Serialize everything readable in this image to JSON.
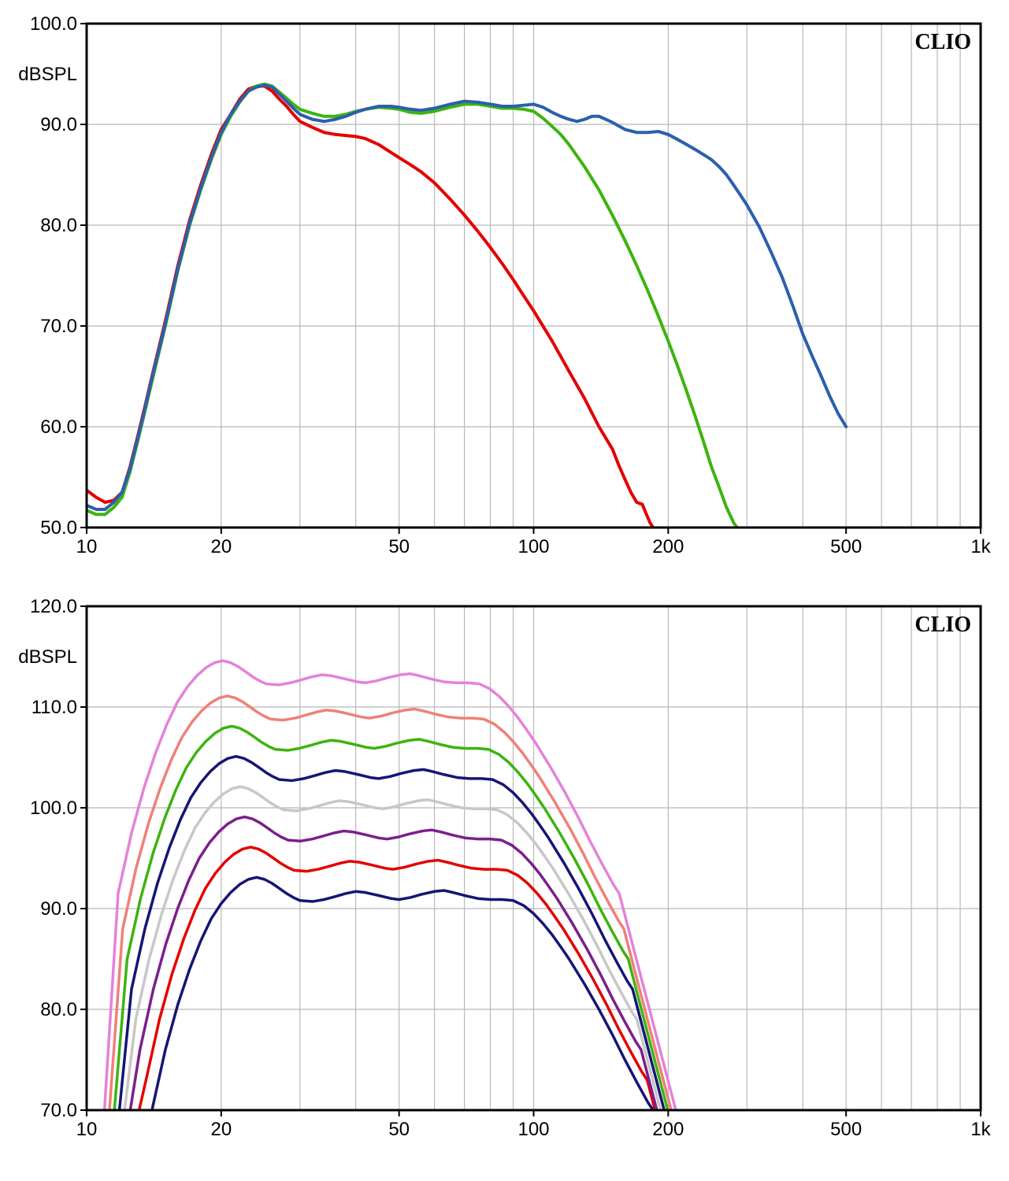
{
  "chart1": {
    "type": "line",
    "brand_label": "CLIO",
    "ylabel": "dBSPL",
    "background_color": "#ffffff",
    "border_color": "#000000",
    "grid_color": "#b8b8b8",
    "grid_width": 1.2,
    "border_width": 3,
    "line_width": 4,
    "axis_fontsize": 24,
    "brand_fontsize": 28,
    "x": {
      "scale": "log",
      "min": 10,
      "max": 1000,
      "major_ticks": [
        10,
        20,
        50,
        100,
        200,
        500,
        1000
      ],
      "major_labels": [
        "10",
        "20",
        "50",
        "100",
        "200",
        "500",
        "1k"
      ],
      "minor_ticks": [
        10,
        20,
        30,
        40,
        50,
        60,
        70,
        80,
        90,
        100,
        200,
        300,
        400,
        500,
        600,
        700,
        800,
        900,
        1000
      ]
    },
    "y": {
      "scale": "linear",
      "min": 50,
      "max": 100,
      "tick_step": 10,
      "ticks": [
        50,
        60,
        70,
        80,
        90,
        100
      ],
      "labels": [
        "50.0",
        "60.0",
        "70.0",
        "80.0",
        "90.0",
        "100.0"
      ]
    },
    "series": [
      {
        "name": "red",
        "color": "#e40000",
        "points": [
          [
            10,
            53.7
          ],
          [
            10.5,
            53
          ],
          [
            11,
            52.5
          ],
          [
            11.5,
            52.7
          ],
          [
            12,
            53.5
          ],
          [
            12.5,
            56
          ],
          [
            13,
            59
          ],
          [
            13.5,
            62
          ],
          [
            14,
            65
          ],
          [
            15,
            70.5
          ],
          [
            16,
            76
          ],
          [
            17,
            80.5
          ],
          [
            18,
            84
          ],
          [
            19,
            87
          ],
          [
            20,
            89.5
          ],
          [
            21,
            91
          ],
          [
            22,
            92.5
          ],
          [
            23,
            93.5
          ],
          [
            24,
            93.8
          ],
          [
            25,
            93.8
          ],
          [
            26,
            93.3
          ],
          [
            27,
            92.5
          ],
          [
            28,
            91.8
          ],
          [
            29,
            91
          ],
          [
            30,
            90.3
          ],
          [
            32,
            89.7
          ],
          [
            34,
            89.2
          ],
          [
            36,
            89
          ],
          [
            38,
            88.9
          ],
          [
            40,
            88.8
          ],
          [
            42,
            88.6
          ],
          [
            45,
            88
          ],
          [
            48,
            87.2
          ],
          [
            50,
            86.7
          ],
          [
            53,
            86
          ],
          [
            56,
            85.3
          ],
          [
            60,
            84.2
          ],
          [
            65,
            82.6
          ],
          [
            70,
            81
          ],
          [
            75,
            79.4
          ],
          [
            80,
            77.8
          ],
          [
            85,
            76.2
          ],
          [
            90,
            74.6
          ],
          [
            95,
            73
          ],
          [
            100,
            71.5
          ],
          [
            110,
            68.5
          ],
          [
            120,
            65.5
          ],
          [
            130,
            62.8
          ],
          [
            140,
            60
          ],
          [
            150,
            57.8
          ],
          [
            155,
            56.2
          ],
          [
            160,
            54.8
          ],
          [
            165,
            53.5
          ],
          [
            170,
            52.5
          ],
          [
            175,
            52.3
          ],
          [
            178,
            51.5
          ],
          [
            182,
            50.5
          ],
          [
            185,
            50
          ]
        ]
      },
      {
        "name": "green",
        "color": "#3cb40f",
        "points": [
          [
            10,
            51.7
          ],
          [
            10.5,
            51.3
          ],
          [
            11,
            51.3
          ],
          [
            11.5,
            52
          ],
          [
            12,
            53
          ],
          [
            12.5,
            55.5
          ],
          [
            13,
            58.5
          ],
          [
            13.5,
            61.5
          ],
          [
            14,
            64.5
          ],
          [
            15,
            70
          ],
          [
            16,
            75.5
          ],
          [
            17,
            80
          ],
          [
            18,
            83.5
          ],
          [
            19,
            86.5
          ],
          [
            20,
            89
          ],
          [
            21,
            90.8
          ],
          [
            22,
            92.2
          ],
          [
            23,
            93.3
          ],
          [
            24,
            93.8
          ],
          [
            25,
            94
          ],
          [
            26,
            93.8
          ],
          [
            27,
            93.2
          ],
          [
            28,
            92.6
          ],
          [
            29,
            92
          ],
          [
            30,
            91.5
          ],
          [
            32,
            91.1
          ],
          [
            34,
            90.8
          ],
          [
            36,
            90.8
          ],
          [
            38,
            91
          ],
          [
            40,
            91.3
          ],
          [
            42,
            91.5
          ],
          [
            45,
            91.7
          ],
          [
            48,
            91.6
          ],
          [
            50,
            91.5
          ],
          [
            53,
            91.2
          ],
          [
            56,
            91.1
          ],
          [
            60,
            91.3
          ],
          [
            65,
            91.7
          ],
          [
            70,
            92
          ],
          [
            75,
            92
          ],
          [
            80,
            91.8
          ],
          [
            85,
            91.6
          ],
          [
            90,
            91.6
          ],
          [
            95,
            91.5
          ],
          [
            100,
            91.3
          ],
          [
            105,
            90.6
          ],
          [
            110,
            89.8
          ],
          [
            115,
            89
          ],
          [
            120,
            88
          ],
          [
            130,
            85.8
          ],
          [
            140,
            83.5
          ],
          [
            150,
            81
          ],
          [
            160,
            78.5
          ],
          [
            170,
            76
          ],
          [
            180,
            73.5
          ],
          [
            190,
            71
          ],
          [
            200,
            68.5
          ],
          [
            210,
            66
          ],
          [
            220,
            63.5
          ],
          [
            230,
            61
          ],
          [
            240,
            58.5
          ],
          [
            250,
            56
          ],
          [
            260,
            54
          ],
          [
            270,
            52
          ],
          [
            280,
            50.5
          ],
          [
            285,
            50
          ]
        ]
      },
      {
        "name": "blue",
        "color": "#2b5fae",
        "points": [
          [
            10,
            52.2
          ],
          [
            10.5,
            51.8
          ],
          [
            11,
            51.8
          ],
          [
            11.5,
            52.5
          ],
          [
            12,
            53.5
          ],
          [
            12.5,
            55.8
          ],
          [
            13,
            58.8
          ],
          [
            13.5,
            61.8
          ],
          [
            14,
            64.8
          ],
          [
            15,
            70.2
          ],
          [
            16,
            75.7
          ],
          [
            17,
            80.2
          ],
          [
            18,
            83.7
          ],
          [
            19,
            86.7
          ],
          [
            20,
            89.2
          ],
          [
            21,
            91
          ],
          [
            22,
            92.3
          ],
          [
            23,
            93.3
          ],
          [
            24,
            93.7
          ],
          [
            25,
            93.9
          ],
          [
            26,
            93.7
          ],
          [
            27,
            93
          ],
          [
            28,
            92.3
          ],
          [
            29,
            91.6
          ],
          [
            30,
            91
          ],
          [
            32,
            90.5
          ],
          [
            34,
            90.3
          ],
          [
            36,
            90.5
          ],
          [
            38,
            90.8
          ],
          [
            40,
            91.2
          ],
          [
            42,
            91.5
          ],
          [
            45,
            91.8
          ],
          [
            48,
            91.8
          ],
          [
            50,
            91.7
          ],
          [
            53,
            91.5
          ],
          [
            56,
            91.4
          ],
          [
            60,
            91.6
          ],
          [
            65,
            92
          ],
          [
            70,
            92.3
          ],
          [
            75,
            92.2
          ],
          [
            80,
            92
          ],
          [
            85,
            91.8
          ],
          [
            90,
            91.8
          ],
          [
            95,
            91.9
          ],
          [
            100,
            92
          ],
          [
            105,
            91.7
          ],
          [
            110,
            91.2
          ],
          [
            115,
            90.8
          ],
          [
            120,
            90.5
          ],
          [
            125,
            90.3
          ],
          [
            130,
            90.5
          ],
          [
            135,
            90.8
          ],
          [
            140,
            90.8
          ],
          [
            145,
            90.5
          ],
          [
            150,
            90.2
          ],
          [
            160,
            89.5
          ],
          [
            170,
            89.2
          ],
          [
            180,
            89.2
          ],
          [
            190,
            89.3
          ],
          [
            200,
            89
          ],
          [
            210,
            88.5
          ],
          [
            220,
            88
          ],
          [
            230,
            87.5
          ],
          [
            240,
            87
          ],
          [
            250,
            86.5
          ],
          [
            260,
            85.8
          ],
          [
            270,
            85
          ],
          [
            280,
            84
          ],
          [
            290,
            83
          ],
          [
            300,
            82
          ],
          [
            320,
            79.8
          ],
          [
            340,
            77.3
          ],
          [
            360,
            74.8
          ],
          [
            380,
            72
          ],
          [
            400,
            69.2
          ],
          [
            420,
            67
          ],
          [
            440,
            65
          ],
          [
            460,
            63
          ],
          [
            480,
            61.3
          ],
          [
            500,
            60
          ]
        ]
      }
    ]
  },
  "chart2": {
    "type": "line",
    "brand_label": "CLIO",
    "ylabel": "dBSPL",
    "background_color": "#ffffff",
    "border_color": "#000000",
    "grid_color": "#b8b8b8",
    "grid_width": 1.2,
    "border_width": 3,
    "line_width": 3.5,
    "axis_fontsize": 24,
    "brand_fontsize": 28,
    "x": {
      "scale": "log",
      "min": 10,
      "max": 1000,
      "major_ticks": [
        10,
        20,
        50,
        100,
        200,
        500,
        1000
      ],
      "major_labels": [
        "10",
        "20",
        "50",
        "100",
        "200",
        "500",
        "1k"
      ],
      "minor_ticks": [
        10,
        20,
        30,
        40,
        50,
        60,
        70,
        80,
        90,
        100,
        200,
        300,
        400,
        500,
        600,
        700,
        800,
        900,
        1000
      ]
    },
    "y": {
      "scale": "linear",
      "min": 70,
      "max": 120,
      "tick_step": 10,
      "ticks": [
        70,
        80,
        90,
        100,
        110,
        120
      ],
      "labels": [
        "70.0",
        "80.0",
        "90.0",
        "100.0",
        "110.0",
        "120.0"
      ]
    },
    "base_curve": {
      "points": [
        [
          14,
          70
        ],
        [
          15,
          76
        ],
        [
          16,
          80.5
        ],
        [
          17,
          84
        ],
        [
          18,
          86.8
        ],
        [
          19,
          89
        ],
        [
          20,
          90.5
        ],
        [
          21,
          91.6
        ],
        [
          22,
          92.4
        ],
        [
          23,
          92.9
        ],
        [
          24,
          93.1
        ],
        [
          25,
          92.9
        ],
        [
          26,
          92.5
        ],
        [
          27,
          92
        ],
        [
          28,
          91.5
        ],
        [
          29,
          91.1
        ],
        [
          30,
          90.8
        ],
        [
          32,
          90.7
        ],
        [
          34,
          90.9
        ],
        [
          36,
          91.2
        ],
        [
          38,
          91.5
        ],
        [
          40,
          91.7
        ],
        [
          42,
          91.6
        ],
        [
          45,
          91.3
        ],
        [
          48,
          91
        ],
        [
          50,
          90.9
        ],
        [
          53,
          91.1
        ],
        [
          56,
          91.4
        ],
        [
          60,
          91.7
        ],
        [
          63,
          91.8
        ],
        [
          66,
          91.6
        ],
        [
          70,
          91.3
        ],
        [
          75,
          91
        ],
        [
          80,
          90.9
        ],
        [
          85,
          90.9
        ],
        [
          90,
          90.8
        ],
        [
          95,
          90.3
        ],
        [
          100,
          89.5
        ],
        [
          105,
          88.5
        ],
        [
          110,
          87.4
        ],
        [
          115,
          86.2
        ],
        [
          120,
          85
        ],
        [
          130,
          82.5
        ],
        [
          140,
          80
        ],
        [
          150,
          77.5
        ],
        [
          160,
          75
        ],
        [
          170,
          72.8
        ],
        [
          180,
          70.8
        ],
        [
          185,
          70
        ]
      ]
    },
    "series": [
      {
        "name": "s1_darkblue_bottom",
        "color": "#151575",
        "offset": 0,
        "x_shift": 1.0
      },
      {
        "name": "s2_red",
        "color": "#e40000",
        "offset": 3,
        "x_shift": 0.97
      },
      {
        "name": "s3_purple",
        "color": "#7b1f8b",
        "offset": 6,
        "x_shift": 0.94
      },
      {
        "name": "s4_grey",
        "color": "#c7c7c7",
        "offset": 9,
        "x_shift": 0.92
      },
      {
        "name": "s5_darkblue_mid",
        "color": "#151575",
        "offset": 12,
        "x_shift": 0.9
      },
      {
        "name": "s6_green",
        "color": "#3cb40f",
        "offset": 15,
        "x_shift": 0.88
      },
      {
        "name": "s7_salmon",
        "color": "#f08078",
        "offset": 18,
        "x_shift": 0.86
      },
      {
        "name": "s8_pink",
        "color": "#e482d9",
        "offset": 21.5,
        "x_shift": 0.84
      }
    ]
  }
}
